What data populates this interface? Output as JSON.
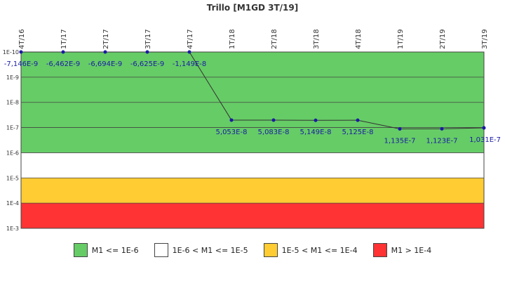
{
  "chart_data": {
    "type": "line",
    "title": "Trillo [M1GD 3T/19]",
    "y_scale": "log",
    "ylim": [
      1e-10,
      0.001
    ],
    "y_ticks": [
      {
        "value": 1e-10,
        "label": "1E-10"
      },
      {
        "value": 1e-09,
        "label": "1E-9"
      },
      {
        "value": 1e-08,
        "label": "1E-8"
      },
      {
        "value": 1e-07,
        "label": "1E-7"
      },
      {
        "value": 1e-06,
        "label": "1E-6"
      },
      {
        "value": 1e-05,
        "label": "1E-5"
      },
      {
        "value": 0.0001,
        "label": "1E-4"
      },
      {
        "value": 0.001,
        "label": "1E-3"
      }
    ],
    "categories": [
      "4T/16",
      "1T/17",
      "2T/17",
      "3T/17",
      "4T/17",
      "1T/18",
      "2T/18",
      "3T/18",
      "4T/18",
      "1T/19",
      "2T/19",
      "3T/19"
    ],
    "series": [
      {
        "values": [
          -7.146e-09,
          -6.462e-09,
          -6.694e-09,
          -6.625e-09,
          -1.149e-08,
          5.053e-08,
          5.083e-08,
          5.149e-08,
          5.125e-08,
          1.135e-07,
          1.123e-07,
          1.031e-07
        ],
        "labels": [
          "-7,146E-9",
          "-6,462E-9",
          "-6,694E-9",
          "-6,625E-9",
          "-1,149E-8",
          "5,053E-8",
          "5,083E-8",
          "5,149E-8",
          "5,125E-8",
          "1,135E-7",
          "1,123E-7",
          "1,031E-7"
        ],
        "color": "#1a1aa6"
      }
    ],
    "bands": [
      {
        "from": 1e-10,
        "to": 1e-06,
        "color": "#66cc66",
        "label": "M1 <= 1E-6"
      },
      {
        "from": 1e-06,
        "to": 1e-05,
        "color": "#ffffff",
        "label": "1E-6 < M1 <= 1E-5"
      },
      {
        "from": 1e-05,
        "to": 0.0001,
        "color": "#ffcc33",
        "label": "1E-5 < M1 <= 1E-4"
      },
      {
        "from": 0.0001,
        "to": 0.001,
        "color": "#ff3333",
        "label": "M1 > 1E-4"
      }
    ],
    "line_color": "#333333",
    "legend_position": "bottom"
  }
}
